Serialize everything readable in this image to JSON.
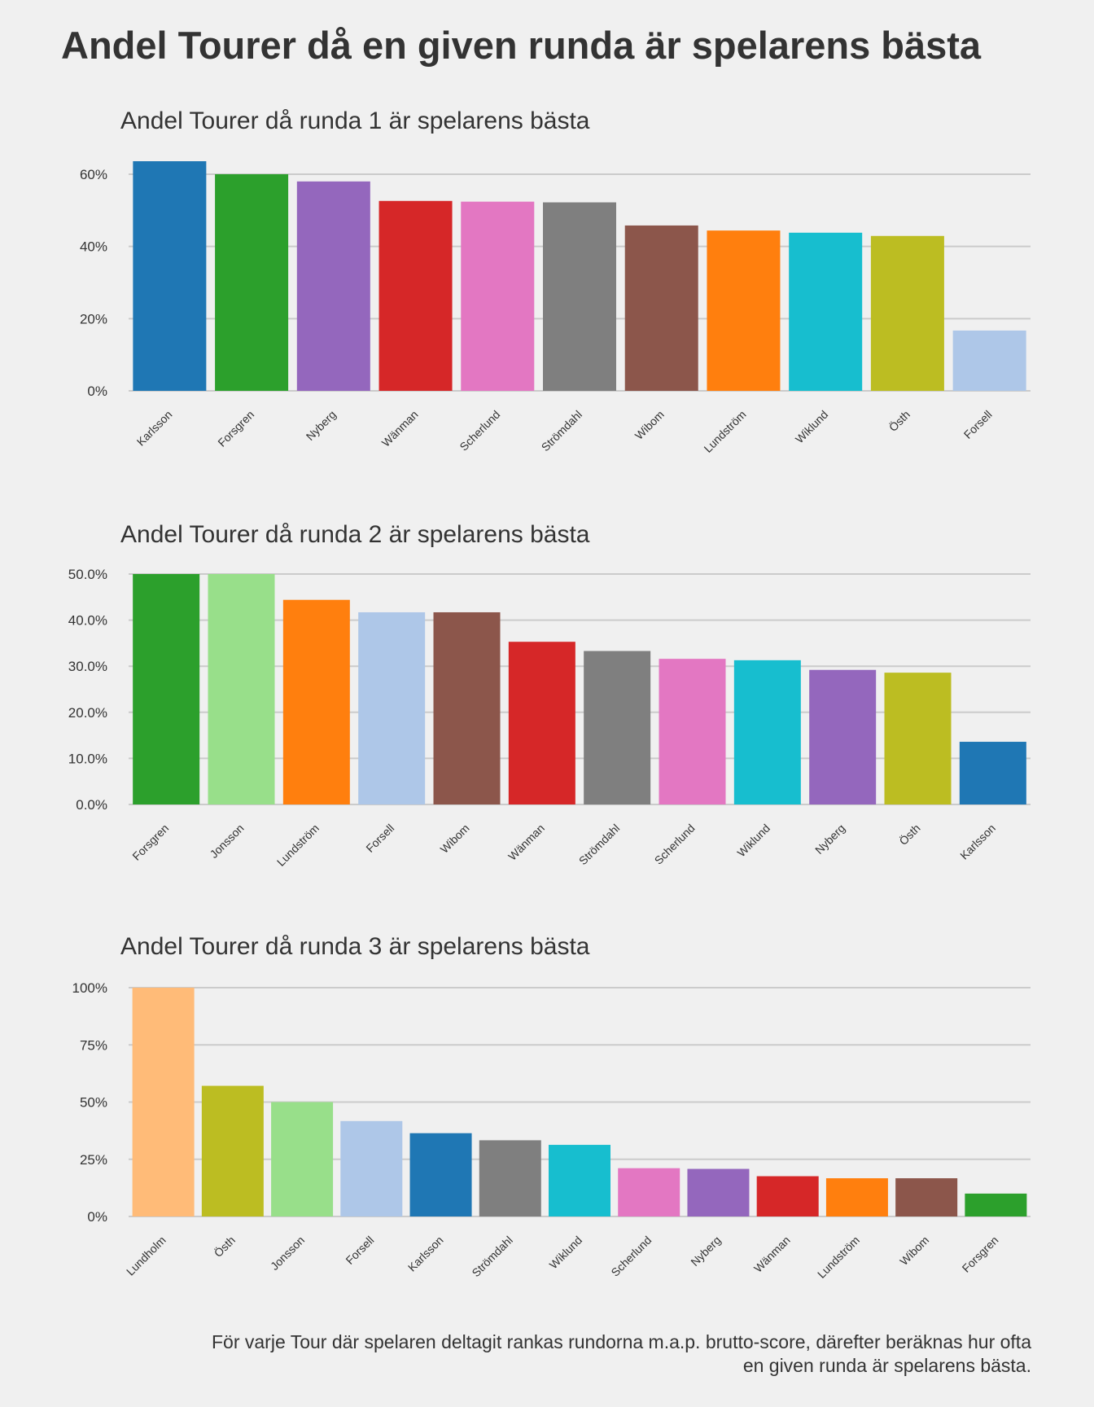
{
  "title": "Andel Tourer då en given runda är spelarens bästa",
  "footnote": {
    "line1": "För varje Tour där spelaren deltagit rankas rundorna m.a.p. brutto-score, därefter beräknas hur ofta",
    "line2": "en given runda är spelarens bästa."
  },
  "colors": {
    "Karlsson": "#1f77b4",
    "Forsgren": "#2ca02c",
    "Nyberg": "#9467bd",
    "Wänman": "#d62728",
    "Scherlund": "#e377c2",
    "Strömdahl": "#7f7f7f",
    "Wibom": "#8c564b",
    "Lundström": "#ff7f0e",
    "Wiklund": "#17becf",
    "Östh": "#bcbd22",
    "Forsell": "#aec7e8",
    "Jonsson": "#98df8a",
    "Lundholm": "#ffbb78"
  },
  "chart_data": [
    {
      "type": "bar",
      "title": "Andel Tourer då runda 1 är spelarens bästa",
      "categories": [
        "Karlsson",
        "Forsgren",
        "Nyberg",
        "Wänman",
        "Scherlund",
        "Strömdahl",
        "Wibom",
        "Lundström",
        "Wiklund",
        "Östh",
        "Forsell"
      ],
      "values": [
        0.636,
        0.6,
        0.58,
        0.526,
        0.524,
        0.522,
        0.458,
        0.444,
        0.438,
        0.429,
        0.167
      ],
      "yticks": [
        0,
        0.2,
        0.4,
        0.6
      ],
      "ytick_labels": [
        "0%",
        "20%",
        "40%",
        "60%"
      ],
      "ylim": [
        0,
        0.636
      ],
      "grid": true
    },
    {
      "type": "bar",
      "title": "Andel Tourer då runda 2 är spelarens bästa",
      "categories": [
        "Forsgren",
        "Jonsson",
        "Lundström",
        "Forsell",
        "Wibom",
        "Wänman",
        "Strömdahl",
        "Scherlund",
        "Wiklund",
        "Nyberg",
        "Östh",
        "Karlsson"
      ],
      "values": [
        0.5,
        0.5,
        0.444,
        0.417,
        0.417,
        0.353,
        0.333,
        0.316,
        0.313,
        0.292,
        0.286,
        0.136
      ],
      "yticks": [
        0,
        0.1,
        0.2,
        0.3,
        0.4,
        0.5
      ],
      "ytick_labels": [
        "0.0%",
        "10.0%",
        "20.0%",
        "30.0%",
        "40.0%",
        "50.0%"
      ],
      "ylim": [
        0,
        0.5
      ],
      "grid": true
    },
    {
      "type": "bar",
      "title": "Andel Tourer då runda 3 är spelarens bästa",
      "categories": [
        "Lundholm",
        "Östh",
        "Jonsson",
        "Forsell",
        "Karlsson",
        "Strömdahl",
        "Wiklund",
        "Scherlund",
        "Nyberg",
        "Wänman",
        "Lundström",
        "Wibom",
        "Forsgren"
      ],
      "values": [
        1.0,
        0.571,
        0.5,
        0.417,
        0.364,
        0.333,
        0.313,
        0.211,
        0.208,
        0.176,
        0.167,
        0.167,
        0.1
      ],
      "yticks": [
        0,
        0.25,
        0.5,
        0.75,
        1.0
      ],
      "ytick_labels": [
        "0%",
        "25%",
        "50%",
        "75%",
        "100%"
      ],
      "ylim": [
        0,
        1.0
      ],
      "grid": true
    }
  ]
}
